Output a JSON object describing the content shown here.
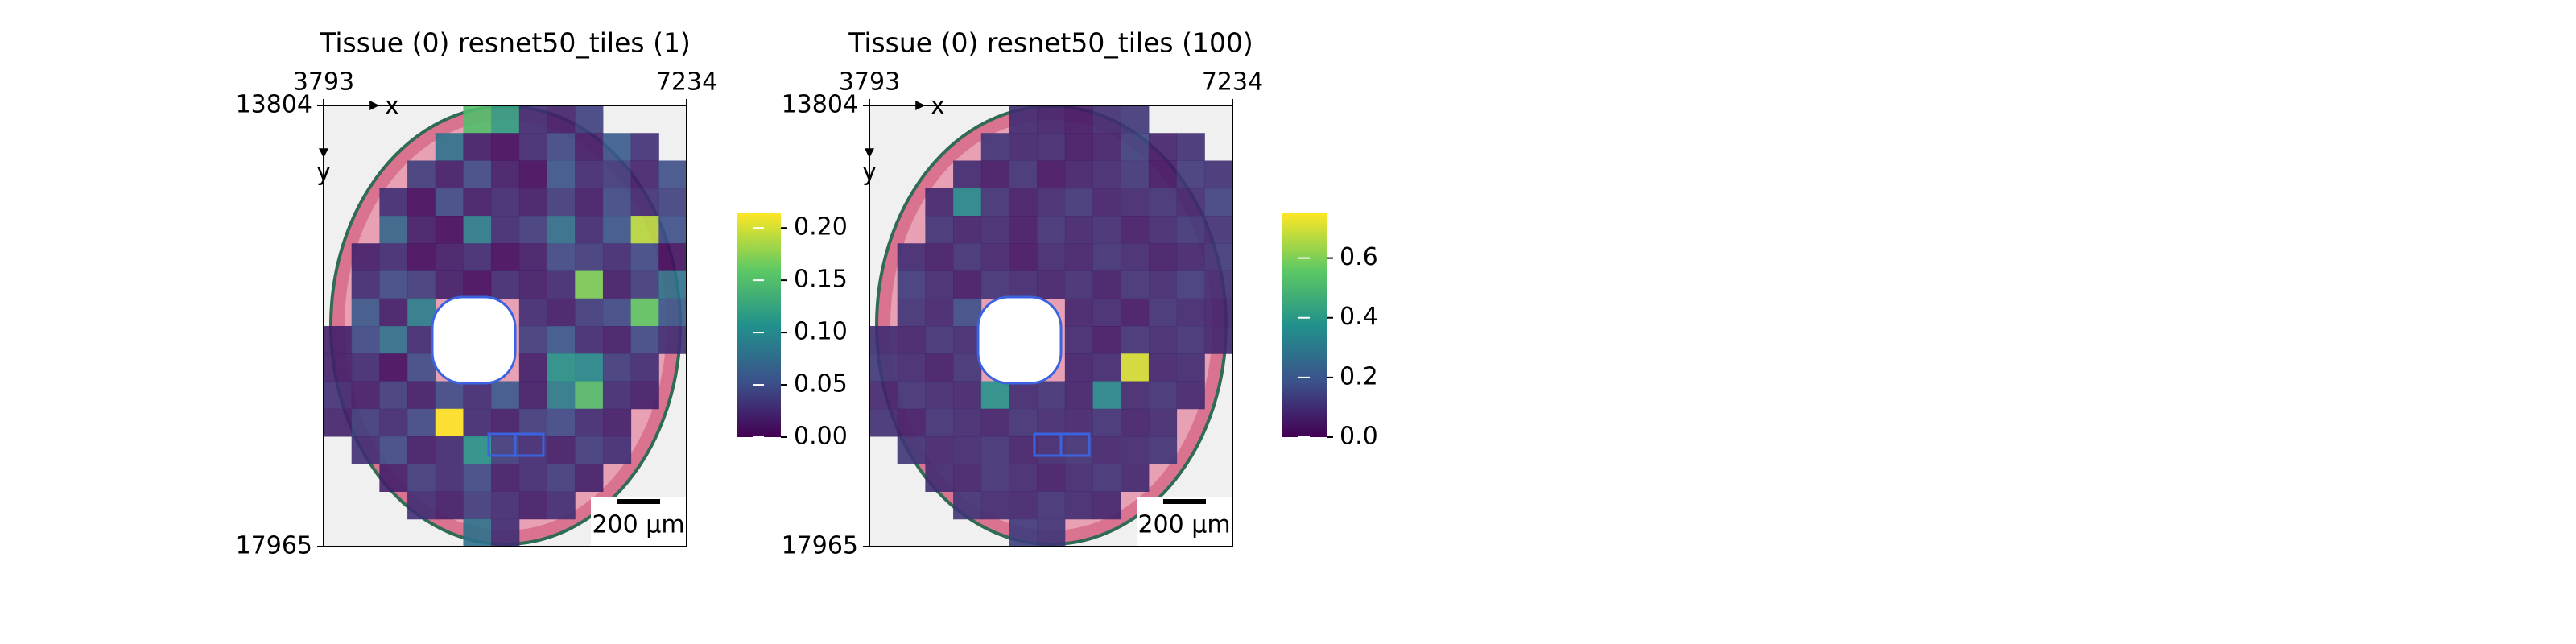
{
  "chart_data": [
    {
      "type": "heatmap",
      "title": "Tissue (0) resnet50_tiles (1)",
      "colormap": "viridis",
      "x_label": "x",
      "y_label": "y",
      "scale_bar_label": "200 µm",
      "xlim": [
        3793,
        7234
      ],
      "ylim": [
        13804,
        17965
      ],
      "xticks": [
        3793,
        7234
      ],
      "yticks": [
        13804,
        17965
      ],
      "colorbar_lim": [
        0,
        0.214
      ],
      "colorbar_ticks": [
        {
          "value": 0,
          "label": "0.00"
        },
        0.05,
        {
          "value": 0.1,
          "label": "0.10"
        },
        0.15,
        {
          "value": 0.2,
          "label": "0.20"
        }
      ],
      "values": [
        [
          null,
          null,
          null,
          null,
          null,
          0.15,
          0.12,
          0.03,
          0.02,
          0.04,
          null,
          null,
          null
        ],
        [
          null,
          null,
          null,
          null,
          0.08,
          0.02,
          0.01,
          0.03,
          0.05,
          0.02,
          0.06,
          0.03,
          null
        ],
        [
          null,
          null,
          null,
          0.04,
          0.02,
          0.05,
          0.02,
          0.01,
          0.06,
          0.03,
          0.04,
          0.02,
          0.05
        ],
        [
          null,
          null,
          0.03,
          0.01,
          0.05,
          0.02,
          0.03,
          0.02,
          0.04,
          0.02,
          0.05,
          0.03,
          0.04
        ],
        [
          null,
          null,
          0.07,
          0.02,
          0.01,
          0.09,
          0.03,
          0.04,
          0.08,
          0.03,
          0.06,
          0.19,
          0.05
        ],
        [
          null,
          0.02,
          0.03,
          0.01,
          0.02,
          0.03,
          0.01,
          0.02,
          0.05,
          0.04,
          0.03,
          0.05,
          0.01
        ],
        [
          null,
          0.03,
          0.05,
          0.04,
          0.02,
          0.01,
          0.03,
          0.02,
          0.03,
          0.17,
          0.02,
          0.04,
          0.08
        ],
        [
          null,
          0.06,
          0.02,
          0.09,
          null,
          null,
          null,
          0.03,
          0.02,
          0.04,
          0.05,
          0.16,
          0.06
        ],
        [
          0.02,
          0.05,
          0.08,
          0.03,
          null,
          null,
          null,
          0.04,
          0.06,
          0.03,
          0.02,
          0.05,
          0.03
        ],
        [
          0.02,
          0.03,
          0.01,
          0.05,
          null,
          null,
          null,
          0.02,
          0.11,
          0.1,
          0.04,
          0.03,
          null
        ],
        [
          0.03,
          0.02,
          0.04,
          0.02,
          0.05,
          0.03,
          0.06,
          0.02,
          0.09,
          0.15,
          0.03,
          0.02,
          null
        ],
        [
          0.02,
          0.04,
          0.03,
          0.05,
          0.22,
          0.03,
          0.02,
          0.04,
          0.05,
          0.03,
          0.02,
          null,
          null
        ],
        [
          null,
          0.03,
          0.05,
          0.02,
          0.03,
          0.11,
          0.04,
          0.03,
          0.02,
          0.04,
          0.03,
          null,
          null
        ],
        [
          null,
          null,
          0.02,
          0.04,
          0.03,
          0.05,
          0.02,
          0.03,
          0.04,
          0.02,
          null,
          null,
          null
        ],
        [
          null,
          null,
          null,
          0.03,
          0.02,
          0.04,
          0.03,
          0.02,
          0.03,
          null,
          null,
          null,
          null
        ],
        [
          null,
          null,
          null,
          null,
          null,
          0.08,
          0.03,
          null,
          null,
          null,
          null,
          null,
          null
        ]
      ]
    },
    {
      "type": "heatmap",
      "title": "Tissue (0) resnet50_tiles (100)",
      "colormap": "viridis",
      "x_label": "x",
      "y_label": "y",
      "scale_bar_label": "200 µm",
      "xlim": [
        3793,
        7234
      ],
      "ylim": [
        13804,
        17965
      ],
      "xticks": [
        3793,
        7234
      ],
      "yticks": [
        13804,
        17965
      ],
      "colorbar_lim": [
        0,
        0.75
      ],
      "colorbar_ticks": [
        {
          "value": 0,
          "label": "0.0"
        },
        0.2,
        0.4,
        0.6
      ],
      "values": [
        [
          null,
          null,
          null,
          null,
          null,
          0.1,
          0.08,
          0.06,
          0.1,
          0.12,
          null,
          null,
          null
        ],
        [
          null,
          null,
          null,
          null,
          0.12,
          0.09,
          0.1,
          0.06,
          0.08,
          0.15,
          0.07,
          0.1,
          null
        ],
        [
          null,
          null,
          null,
          0.1,
          0.06,
          0.12,
          0.05,
          0.08,
          0.1,
          0.13,
          0.06,
          0.12,
          0.1
        ],
        [
          null,
          null,
          0.09,
          0.35,
          0.12,
          0.07,
          0.1,
          0.13,
          0.08,
          0.1,
          0.12,
          0.09,
          0.14
        ],
        [
          null,
          null,
          0.12,
          0.08,
          0.1,
          0.06,
          0.12,
          0.09,
          0.11,
          0.07,
          0.1,
          0.13,
          0.1
        ],
        [
          null,
          0.1,
          0.07,
          0.12,
          0.09,
          0.05,
          0.1,
          0.08,
          0.12,
          0.1,
          0.07,
          0.09,
          0.12
        ],
        [
          null,
          0.14,
          0.1,
          0.06,
          0.12,
          0.1,
          0.08,
          0.11,
          0.07,
          0.12,
          0.1,
          0.14,
          0.1
        ],
        [
          null,
          0.12,
          0.09,
          0.18,
          null,
          null,
          null,
          0.08,
          0.1,
          0.06,
          0.12,
          0.1,
          0.08
        ],
        [
          0.1,
          0.08,
          0.12,
          0.1,
          null,
          null,
          null,
          0.1,
          0.06,
          0.12,
          0.1,
          0.12,
          0.09
        ],
        [
          0.12,
          0.1,
          0.07,
          0.12,
          null,
          null,
          null,
          0.08,
          0.1,
          0.7,
          0.09,
          0.1,
          null
        ],
        [
          0.08,
          0.12,
          0.1,
          0.09,
          0.38,
          0.1,
          0.12,
          0.08,
          0.35,
          0.1,
          0.12,
          0.09,
          null
        ],
        [
          0.1,
          0.07,
          0.12,
          0.1,
          0.08,
          0.12,
          0.1,
          0.09,
          0.12,
          0.08,
          0.1,
          null,
          null
        ],
        [
          null,
          0.12,
          0.09,
          0.1,
          0.12,
          0.08,
          0.1,
          0.12,
          0.09,
          0.1,
          0.12,
          null,
          null
        ],
        [
          null,
          null,
          0.1,
          0.08,
          0.12,
          0.1,
          0.07,
          0.1,
          0.12,
          0.09,
          null,
          null,
          null
        ],
        [
          null,
          null,
          null,
          0.12,
          0.1,
          0.09,
          0.12,
          0.1,
          0.08,
          null,
          null,
          null,
          null
        ],
        [
          null,
          null,
          null,
          null,
          null,
          0.14,
          0.12,
          null,
          null,
          null,
          null,
          null,
          null
        ]
      ]
    }
  ]
}
